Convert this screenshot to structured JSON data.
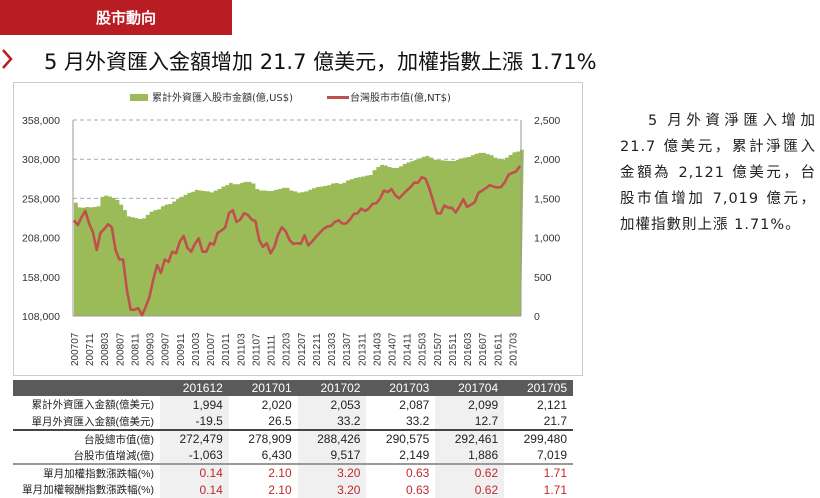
{
  "header": {
    "section_tab": "股市動向",
    "title": "5 月外資匯入金額增加 21.7 億美元，加權指數上漲 1.71%"
  },
  "summary": "5 月外資淨匯入增加 21.7 億美元，累計淨匯入金額為 2,121 億美元，台股市值增加 7,019 億元，加權指數則上漲 1.71%。",
  "colors": {
    "brand": "#b91c22",
    "area": "#9bbb59",
    "line": "#c0504d"
  },
  "chart_data": {
    "type": "area+line",
    "legend": [
      "累計外資匯入股市金額(億,US$)",
      "台灣股市市值(億,NT$)"
    ],
    "legend_position": "top",
    "grid": "horizontal dashed",
    "y_left": {
      "ticks": [
        "358,000",
        "308,000",
        "258,000",
        "208,000",
        "158,000",
        "108,000"
      ],
      "range": [
        108000,
        358000
      ]
    },
    "y_right": {
      "ticks": [
        "2,500",
        "2,000",
        "1,500",
        "1,000",
        "500",
        "0"
      ],
      "range": [
        0,
        2500
      ]
    },
    "x_ticks": [
      "200707",
      "200711",
      "200803",
      "200807",
      "200811",
      "200903",
      "200907",
      "200911",
      "201003",
      "201007",
      "201011",
      "201103",
      "201107",
      "201111",
      "201203",
      "201207",
      "201211",
      "201303",
      "201307",
      "201311",
      "201403",
      "201407",
      "201411",
      "201503",
      "201507",
      "201511",
      "201603",
      "201607",
      "201611",
      "201703"
    ],
    "x_start": "200707",
    "x_end": "201705",
    "series": [
      {
        "name": "累計外資匯入股市金額(億,US$)",
        "type": "area",
        "axis": "right",
        "values": [
          1446,
          1385,
          1380,
          1390,
          1385,
          1390,
          1400,
          1520,
          1535,
          1525,
          1506,
          1480,
          1420,
          1350,
          1270,
          1260,
          1250,
          1238,
          1245,
          1290,
          1330,
          1350,
          1360,
          1400,
          1420,
          1429,
          1460,
          1490,
          1520,
          1545,
          1570,
          1585,
          1608,
          1600,
          1595,
          1590,
          1577,
          1600,
          1620,
          1650,
          1670,
          1697,
          1680,
          1680,
          1700,
          1710,
          1710,
          1690,
          1620,
          1600,
          1600,
          1595,
          1596,
          1610,
          1620,
          1635,
          1635,
          1600,
          1590,
          1574,
          1578,
          1590,
          1610,
          1630,
          1646,
          1650,
          1660,
          1670,
          1690,
          1697,
          1685,
          1700,
          1730,
          1745,
          1761,
          1770,
          1780,
          1790,
          1799,
          1860,
          1900,
          1927,
          1920,
          1900,
          1890,
          1888,
          1910,
          1940,
          1960,
          1975,
          1990,
          2010,
          2030,
          2042,
          2020,
          1995,
          1990,
          1985,
          1980,
          1978,
          1977,
          1990,
          2010,
          2020,
          2028,
          2050,
          2070,
          2080,
          2080,
          2065,
          2050,
          2020,
          2005,
          1994,
          2020,
          2053,
          2087,
          2099,
          2121
        ]
      },
      {
        "name": "台灣股市市值(億,NT$)",
        "type": "line",
        "axis": "left",
        "values": [
          230000,
          224000,
          234000,
          242000,
          226000,
          215000,
          192000,
          214000,
          219000,
          225000,
          221000,
          192000,
          180000,
          180000,
          141000,
          116000,
          116000,
          118000,
          109000,
          120000,
          133000,
          155000,
          173000,
          163000,
          180000,
          177000,
          190000,
          188000,
          203000,
          210000,
          195000,
          190000,
          200000,
          207000,
          190000,
          190000,
          201000,
          199000,
          214000,
          217000,
          221000,
          239000,
          243000,
          228000,
          231000,
          239000,
          237000,
          231000,
          229000,
          205000,
          196000,
          201000,
          188000,
          196000,
          212000,
          221000,
          216000,
          205000,
          200000,
          201000,
          200000,
          211000,
          198000,
          203000,
          209000,
          214000,
          219000,
          222000,
          223000,
          228000,
          230000,
          226000,
          226000,
          231000,
          238000,
          239000,
          245000,
          242000,
          245000,
          251000,
          252000,
          258000,
          268000,
          266000,
          270000,
          262000,
          258000,
          263000,
          268000,
          272000,
          278000,
          278000,
          285000,
          283000,
          271000,
          255000,
          239000,
          239000,
          249000,
          246000,
          246000,
          240000,
          248000,
          257000,
          247000,
          250000,
          253000,
          265000,
          268000,
          271000,
          275000,
          273000,
          272000,
          272479,
          278909,
          288426,
          290575,
          292461,
          299480
        ]
      }
    ]
  },
  "table": {
    "columns": [
      "201612",
      "201701",
      "201702",
      "201703",
      "201704",
      "201705"
    ],
    "rows": [
      {
        "label": "累計外資匯入金額(億美元)",
        "values": [
          "1,994",
          "2,020",
          "2,053",
          "2,087",
          "2,099",
          "2,121"
        ]
      },
      {
        "label": "單月外資匯入金額(億美元)",
        "values": [
          "-19.5",
          "26.5",
          "33.2",
          "33.2",
          "12.7",
          "21.7"
        ]
      },
      {
        "label": "台股總市值(億)",
        "values": [
          "272,479",
          "278,909",
          "288,426",
          "290,575",
          "292,461",
          "299,480"
        ]
      },
      {
        "label": "台股市值增減(億)",
        "values": [
          "-1,063",
          "6,430",
          "9,517",
          "2,149",
          "1,886",
          "7,019"
        ]
      },
      {
        "label": "單月加權指數漲跌幅(%)",
        "values": [
          "0.14",
          "2.10",
          "3.20",
          "0.63",
          "0.62",
          "1.71"
        ]
      },
      {
        "label": "單月加權報酬指數漲跌幅(%)",
        "values": [
          "0.14",
          "2.10",
          "3.20",
          "0.63",
          "0.62",
          "1.71"
        ]
      }
    ]
  }
}
